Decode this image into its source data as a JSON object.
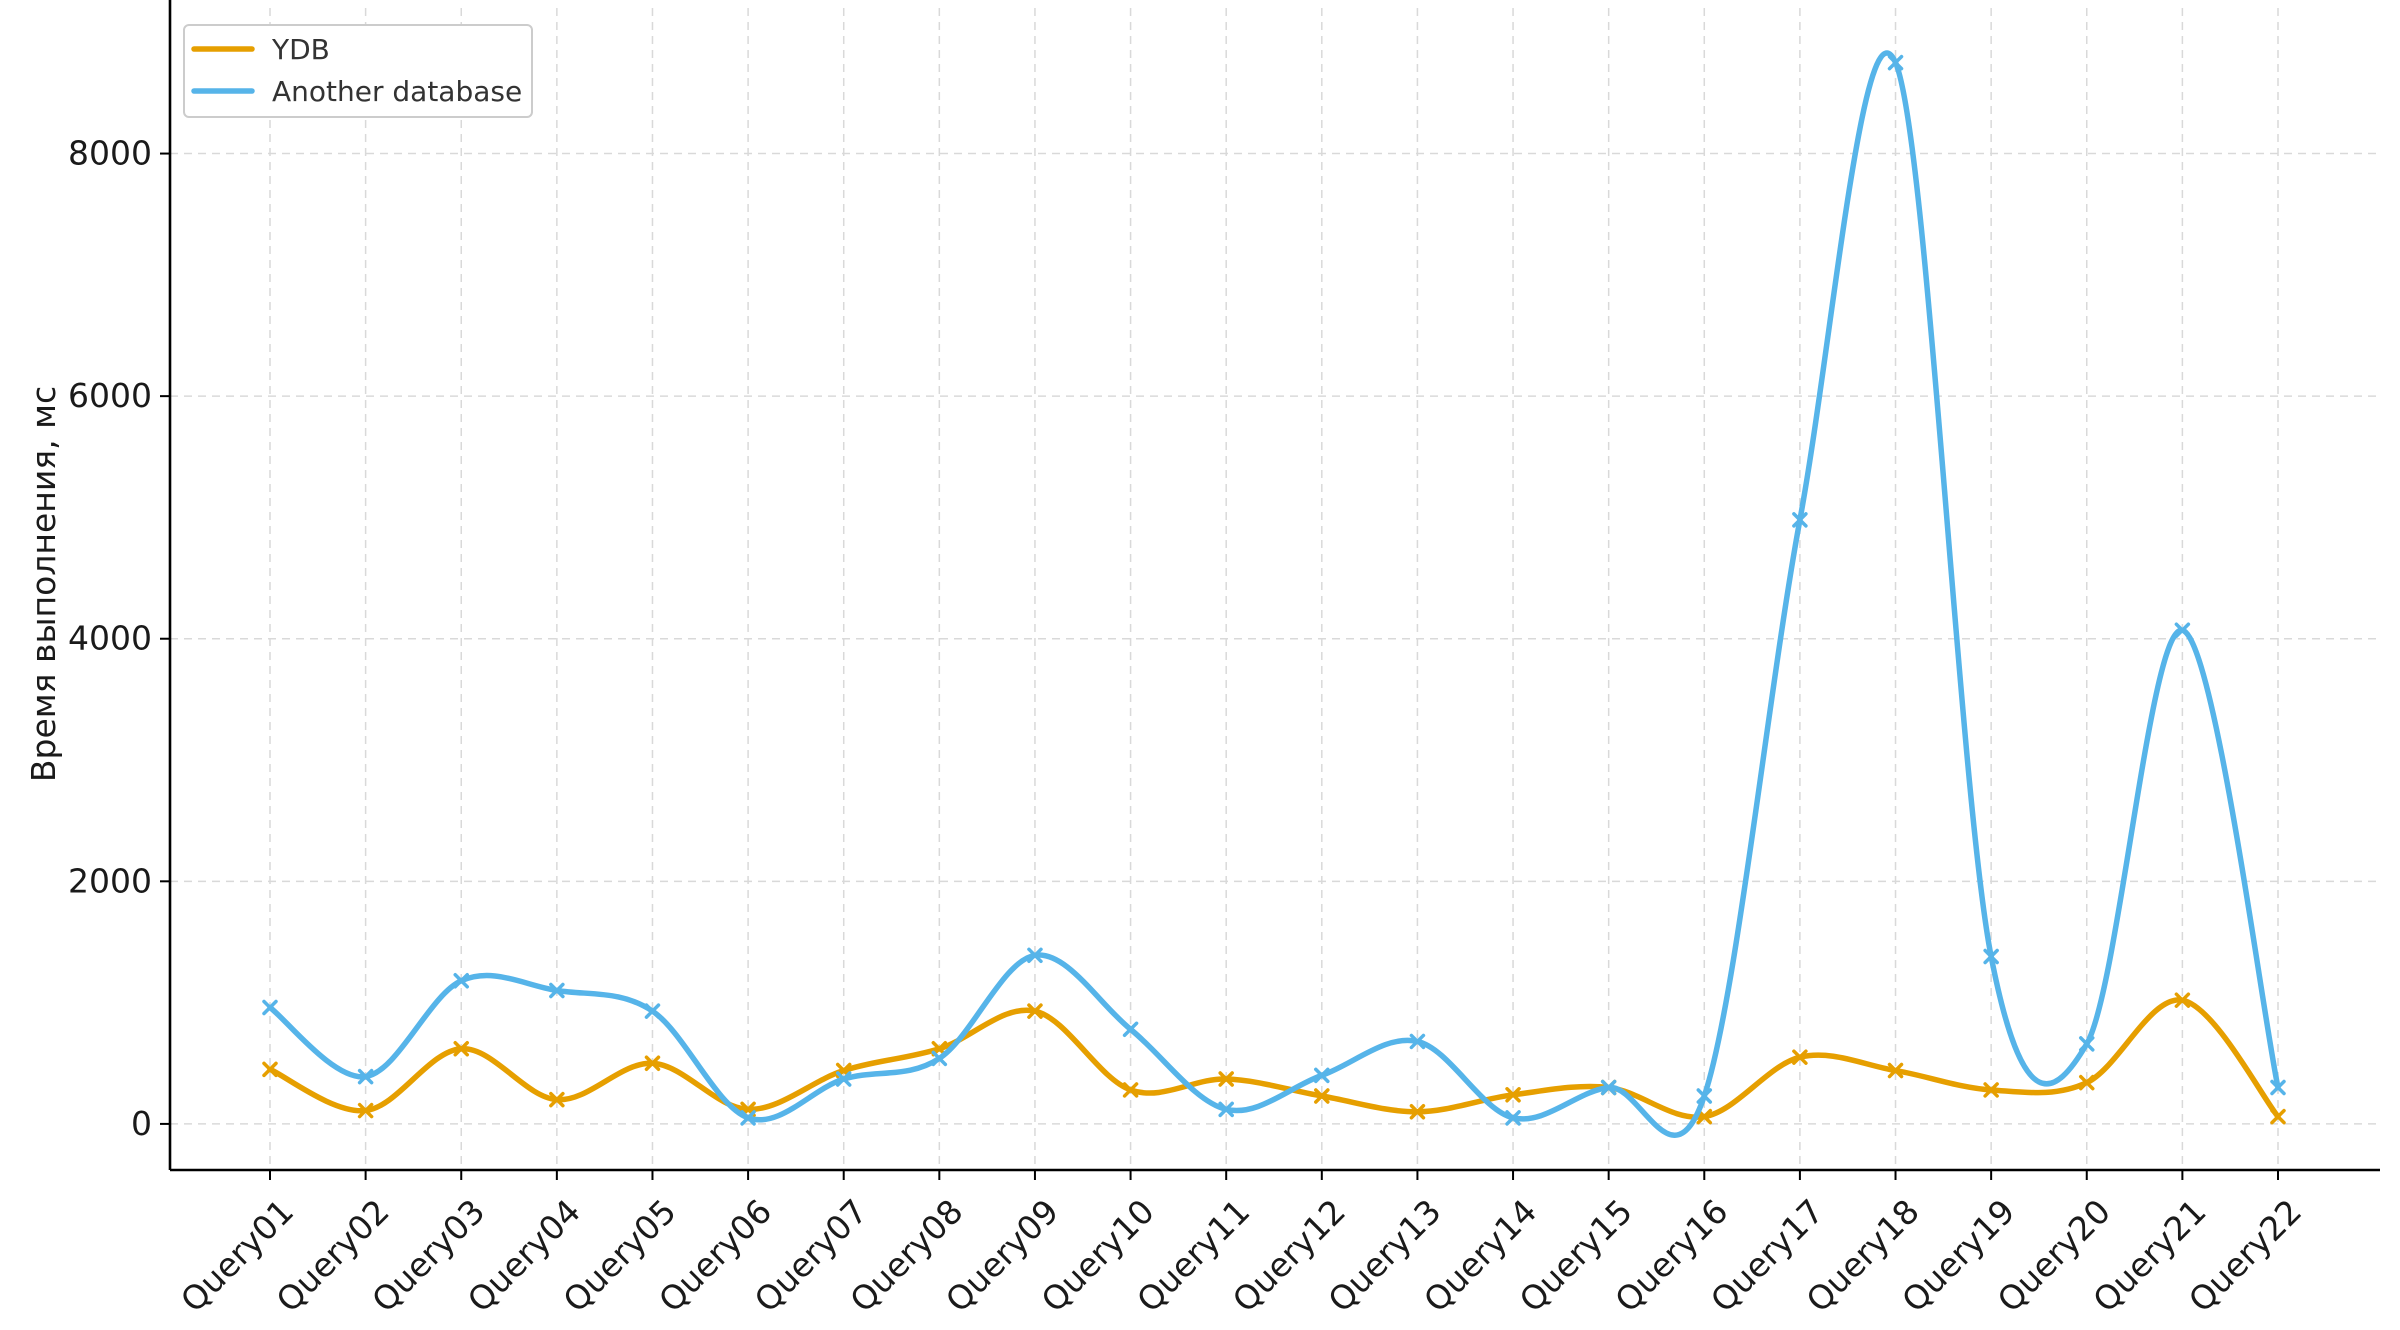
{
  "chart_data": {
    "type": "line",
    "title": "",
    "xlabel": "",
    "ylabel": "Время выполнения, мс",
    "categories": [
      "Query01",
      "Query02",
      "Query03",
      "Query04",
      "Query05",
      "Query06",
      "Query07",
      "Query08",
      "Query09",
      "Query10",
      "Query11",
      "Query12",
      "Query13",
      "Query14",
      "Query15",
      "Query16",
      "Query17",
      "Query18",
      "Query19",
      "Query20",
      "Query21",
      "Query22"
    ],
    "series": [
      {
        "name": "YDB",
        "color": "#E69F00",
        "values": [
          450,
          110,
          620,
          200,
          500,
          120,
          440,
          620,
          930,
          280,
          370,
          230,
          100,
          240,
          300,
          60,
          550,
          440,
          280,
          340,
          1020,
          60
        ]
      },
      {
        "name": "Another database",
        "color": "#56B4E9",
        "values": [
          960,
          390,
          1180,
          1100,
          930,
          50,
          370,
          540,
          1390,
          780,
          120,
          400,
          680,
          50,
          300,
          230,
          4980,
          8750,
          1380,
          660,
          4070,
          300
        ]
      }
    ],
    "ylim": [
      -380,
      9200
    ],
    "yticks": [
      0,
      2000,
      4000,
      6000,
      8000
    ],
    "grid": true,
    "legend_position": "top-left",
    "marker": "x",
    "smooth": true
  }
}
